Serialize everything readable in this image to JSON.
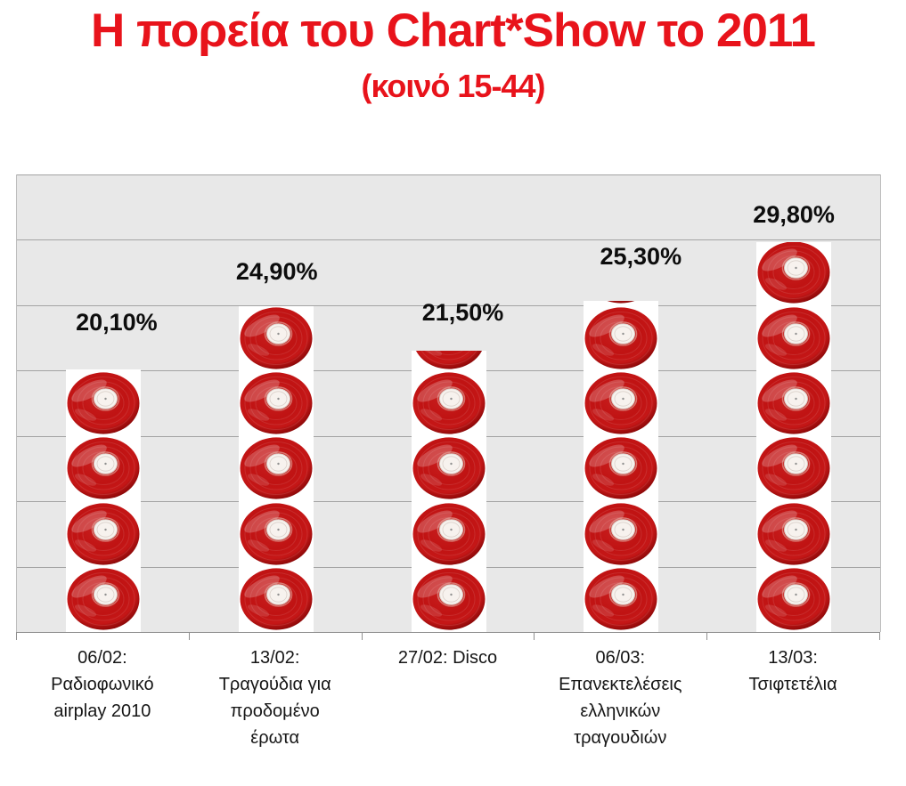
{
  "title": "Η πορεία του Chart*Show το 2011",
  "subtitle": "(κοινό 15-44)",
  "colors": {
    "title_red": "#e8131b",
    "plot_bg": "#e8e8e8",
    "gridline": "#a3a3a3",
    "axis": "#8f8f8f",
    "bar_bg": "#ffffff",
    "record_body": "#c01313",
    "record_rim_dark": "#870808",
    "record_label": "#f7f2ee",
    "value_label_text": "#0d0d0d"
  },
  "chart_data": {
    "type": "bar",
    "title": "Η πορεία του Chart*Show το 2011",
    "subtitle": "(κοινό 15-44)",
    "categories": [
      "06/02: Ραδιοφωνικό airplay 2010",
      "13/02: Τραγούδια για προδομένο έρωτα",
      "27/02: Disco",
      "06/03: Επανεκτελέσεις ελληνικών τραγουδιών",
      "13/03: Τσιφτετέλια"
    ],
    "values": [
      20.1,
      24.9,
      21.5,
      25.3,
      29.8
    ],
    "value_labels": [
      "20,10%",
      "24,90%",
      "21,50%",
      "25,30%",
      "29,80%"
    ],
    "xlabel": "",
    "ylabel": "",
    "ylim": [
      0,
      35
    ],
    "grid_step_pct": 5,
    "grid": true,
    "legend": false,
    "y_tick_labels_visible": false,
    "bar_fill_style": "stacked vinyl record icons, one record per 5%",
    "bar_icon": "vinyl-record"
  }
}
